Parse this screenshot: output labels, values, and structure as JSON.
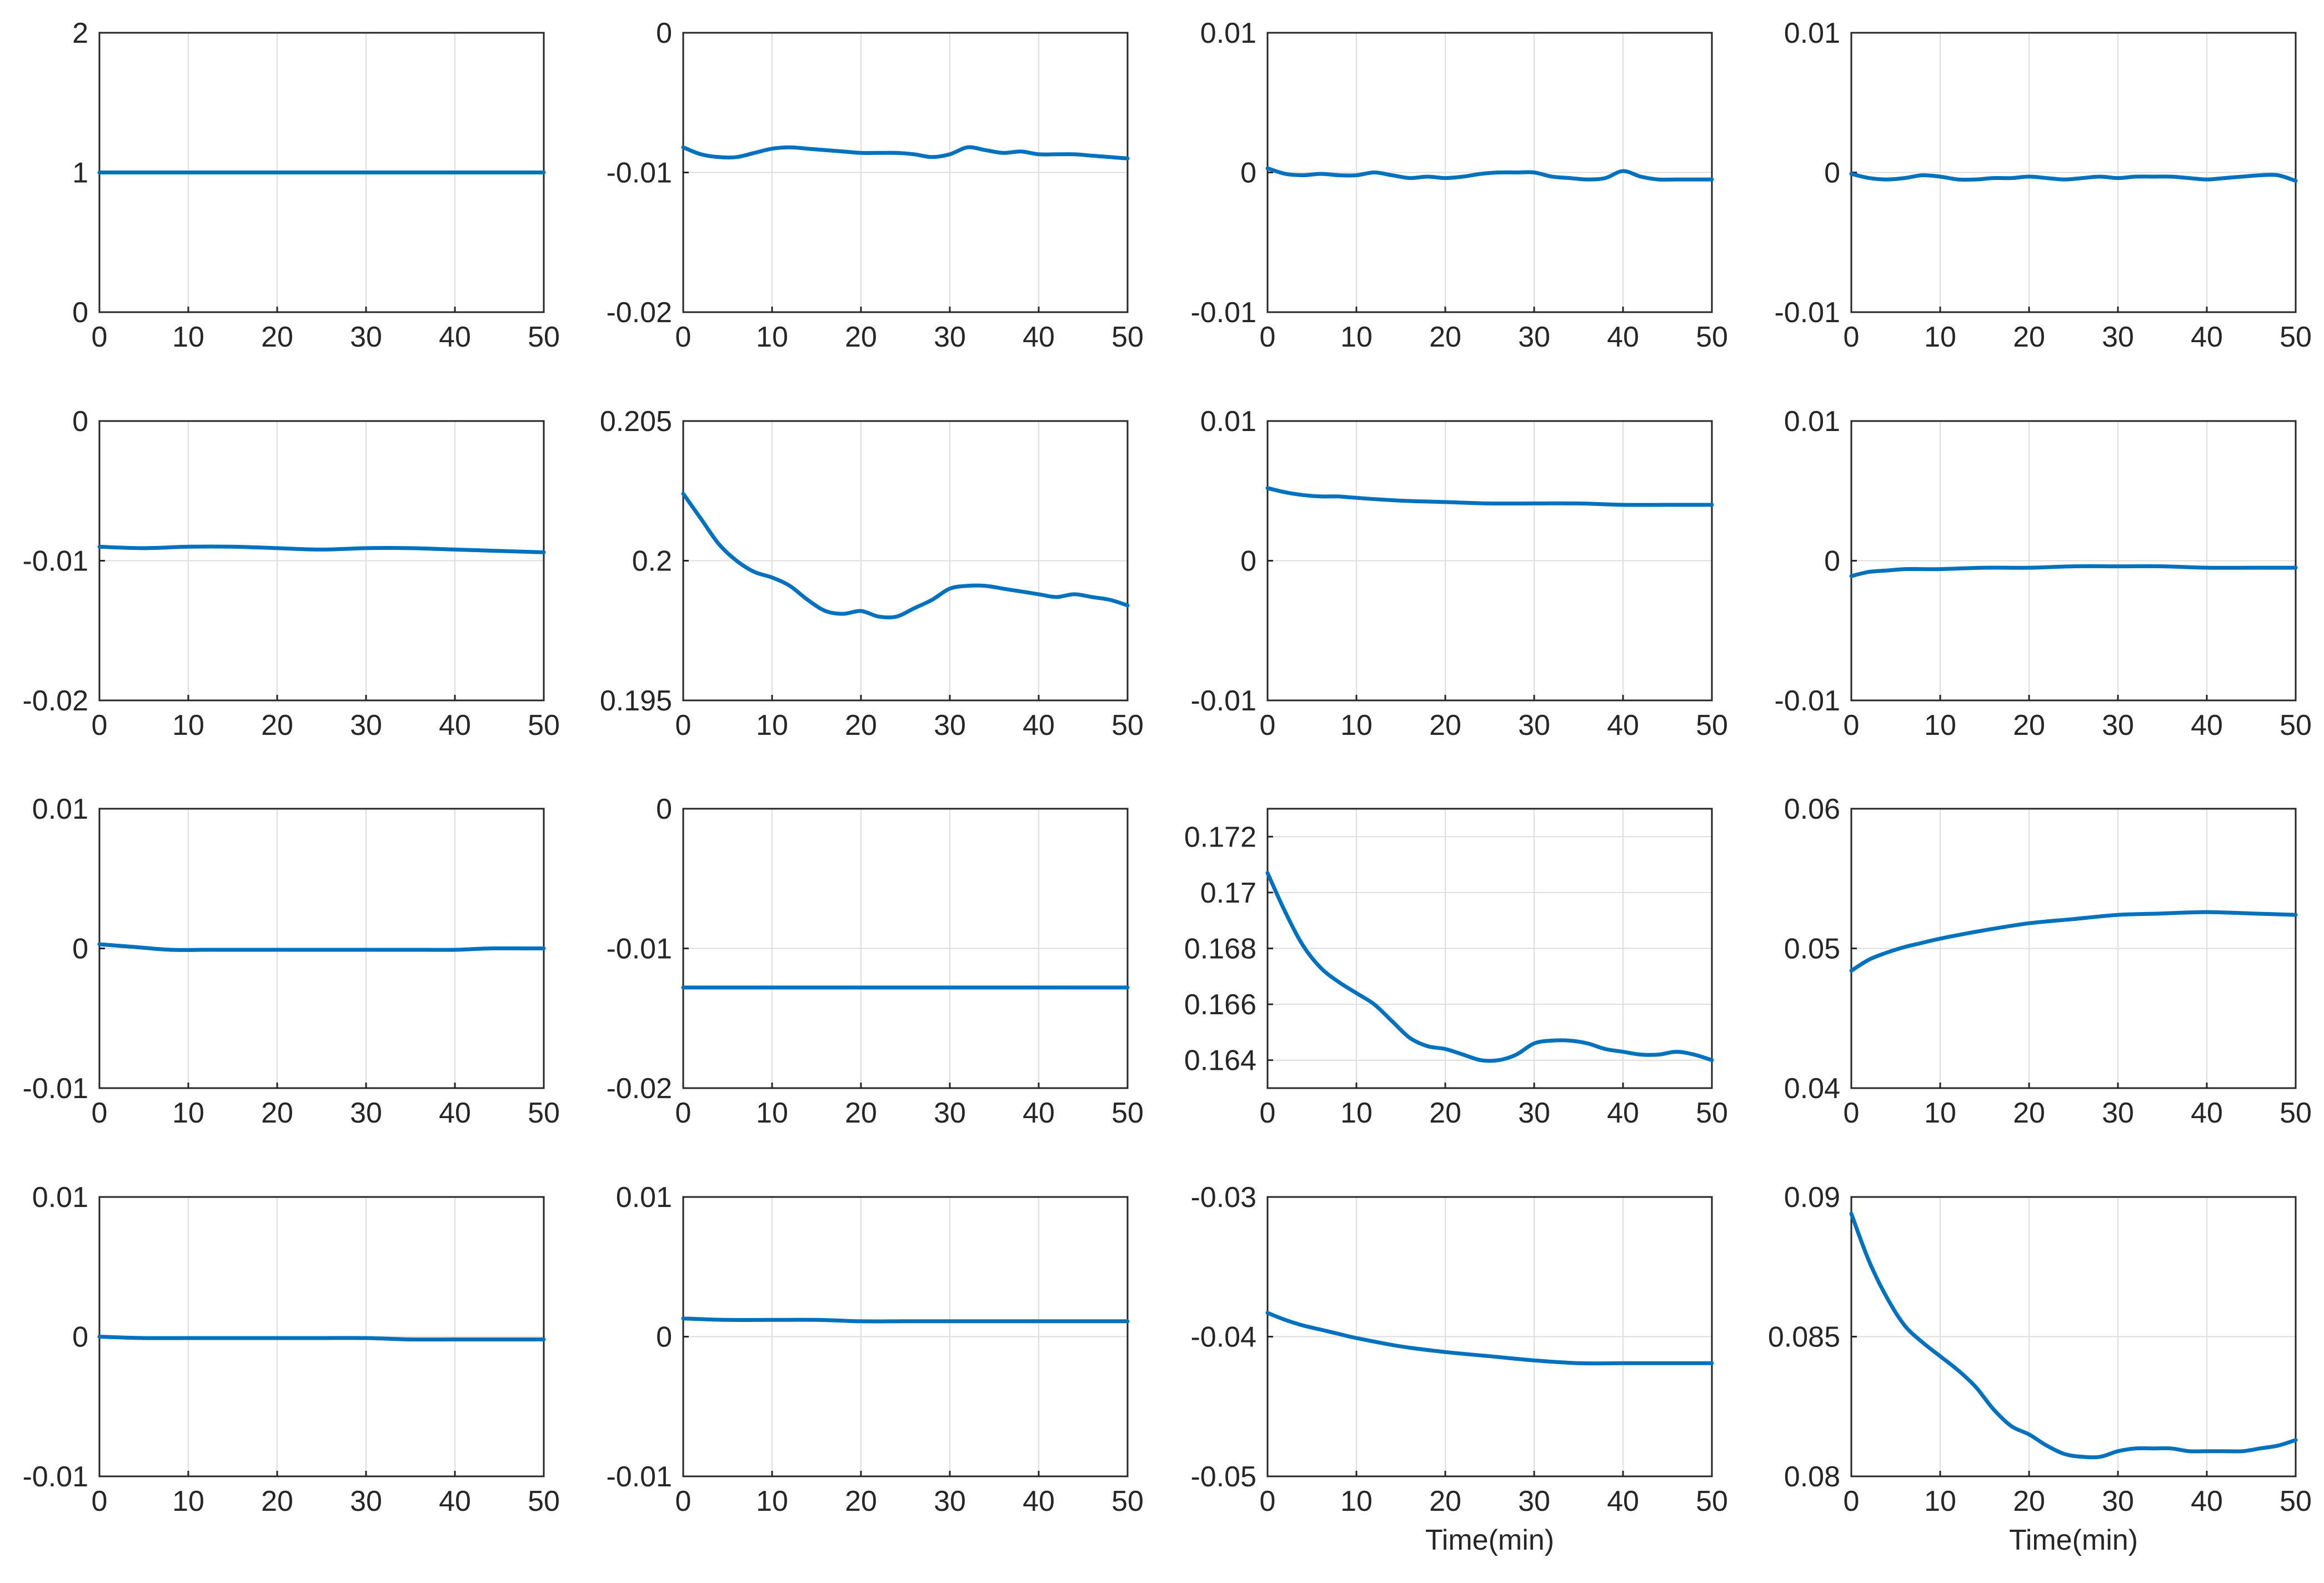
{
  "figure": {
    "grid": true,
    "line_color": "#0072BD",
    "frame_color": "#262626",
    "grid_color": "#dedede",
    "layout": "4x4 grid of line subplots"
  },
  "chart_data": [
    {
      "type": "line",
      "title": "",
      "xlabel": "",
      "ylabel": "",
      "xlim": [
        0,
        50
      ],
      "ylim": [
        0,
        2
      ],
      "xticks": [
        0,
        10,
        20,
        30,
        40,
        50
      ],
      "yticks": [
        0,
        1,
        2
      ],
      "ytick_labels": [
        "0",
        "1",
        "2"
      ],
      "x": [
        0,
        10,
        20,
        30,
        40,
        50
      ],
      "series": [
        {
          "name": "",
          "values": [
            1,
            1,
            1,
            1,
            1,
            1
          ]
        }
      ]
    },
    {
      "type": "line",
      "title": "",
      "xlabel": "",
      "ylabel": "",
      "xlim": [
        0,
        50
      ],
      "ylim": [
        -0.02,
        0
      ],
      "xticks": [
        0,
        10,
        20,
        30,
        40,
        50
      ],
      "yticks": [
        -0.02,
        -0.01,
        0
      ],
      "ytick_labels": [
        "-0.02",
        "-0.01",
        "0"
      ],
      "x": [
        0,
        2,
        4,
        6,
        8,
        10,
        12,
        14,
        16,
        18,
        20,
        22,
        24,
        26,
        28,
        30,
        32,
        34,
        36,
        38,
        40,
        42,
        44,
        46,
        48,
        50
      ],
      "series": [
        {
          "name": "",
          "values": [
            -0.0082,
            -0.0087,
            -0.0089,
            -0.0089,
            -0.0086,
            -0.0083,
            -0.0082,
            -0.0083,
            -0.0084,
            -0.0085,
            -0.0086,
            -0.0086,
            -0.0086,
            -0.0087,
            -0.0089,
            -0.0087,
            -0.0082,
            -0.0084,
            -0.0086,
            -0.0085,
            -0.0087,
            -0.0087,
            -0.0087,
            -0.0088,
            -0.0089,
            -0.009
          ]
        }
      ]
    },
    {
      "type": "line",
      "title": "",
      "xlabel": "",
      "ylabel": "",
      "xlim": [
        0,
        50
      ],
      "ylim": [
        -0.01,
        0.01
      ],
      "xticks": [
        0,
        10,
        20,
        30,
        40,
        50
      ],
      "yticks": [
        -0.01,
        0,
        0.01
      ],
      "ytick_labels": [
        "-0.01",
        "0",
        "0.01"
      ],
      "x": [
        0,
        2,
        4,
        6,
        8,
        10,
        12,
        14,
        16,
        18,
        20,
        22,
        24,
        26,
        28,
        30,
        32,
        34,
        36,
        38,
        40,
        42,
        44,
        46,
        48,
        50
      ],
      "series": [
        {
          "name": "",
          "values": [
            0.0003,
            -0.0001,
            -0.0002,
            -0.0001,
            -0.0002,
            -0.0002,
            0.0,
            -0.0002,
            -0.0004,
            -0.0003,
            -0.0004,
            -0.0003,
            -0.0001,
            0.0,
            0.0,
            0.0,
            -0.0003,
            -0.0004,
            -0.0005,
            -0.0004,
            0.0001,
            -0.0003,
            -0.0005,
            -0.0005,
            -0.0005,
            -0.0005
          ]
        }
      ]
    },
    {
      "type": "line",
      "title": "",
      "xlabel": "",
      "ylabel": "",
      "xlim": [
        0,
        50
      ],
      "ylim": [
        -0.01,
        0.01
      ],
      "xticks": [
        0,
        10,
        20,
        30,
        40,
        50
      ],
      "yticks": [
        -0.01,
        0,
        0.01
      ],
      "ytick_labels": [
        "-0.01",
        "0",
        "0.01"
      ],
      "x": [
        0,
        2,
        4,
        6,
        8,
        10,
        12,
        14,
        16,
        18,
        20,
        22,
        24,
        26,
        28,
        30,
        32,
        34,
        36,
        38,
        40,
        42,
        44,
        46,
        48,
        50
      ],
      "series": [
        {
          "name": "",
          "values": [
            -0.0001,
            -0.0004,
            -0.0005,
            -0.0004,
            -0.0002,
            -0.0003,
            -0.0005,
            -0.0005,
            -0.0004,
            -0.0004,
            -0.0003,
            -0.0004,
            -0.0005,
            -0.0004,
            -0.0003,
            -0.0004,
            -0.0003,
            -0.0003,
            -0.0003,
            -0.0004,
            -0.0005,
            -0.0004,
            -0.0003,
            -0.0002,
            -0.0002,
            -0.0006
          ]
        }
      ]
    },
    {
      "type": "line",
      "title": "",
      "xlabel": "",
      "ylabel": "",
      "xlim": [
        0,
        50
      ],
      "ylim": [
        -0.02,
        0
      ],
      "xticks": [
        0,
        10,
        20,
        30,
        40,
        50
      ],
      "yticks": [
        -0.02,
        -0.01,
        0
      ],
      "ytick_labels": [
        "-0.02",
        "-0.01",
        "0"
      ],
      "x": [
        0,
        5,
        10,
        15,
        20,
        25,
        30,
        35,
        40,
        45,
        50
      ],
      "series": [
        {
          "name": "",
          "values": [
            -0.009,
            -0.0091,
            -0.009,
            -0.009,
            -0.0091,
            -0.0092,
            -0.0091,
            -0.0091,
            -0.0092,
            -0.0093,
            -0.0094
          ]
        }
      ]
    },
    {
      "type": "line",
      "title": "",
      "xlabel": "",
      "ylabel": "",
      "xlim": [
        0,
        50
      ],
      "ylim": [
        0.195,
        0.205
      ],
      "xticks": [
        0,
        10,
        20,
        30,
        40,
        50
      ],
      "yticks": [
        0.195,
        0.2,
        0.205
      ],
      "ytick_labels": [
        "0.195",
        "0.2",
        "0.205"
      ],
      "x": [
        0,
        2,
        4,
        6,
        8,
        10,
        12,
        14,
        16,
        18,
        20,
        22,
        24,
        26,
        28,
        30,
        32,
        34,
        36,
        38,
        40,
        42,
        44,
        46,
        48,
        50
      ],
      "series": [
        {
          "name": "",
          "values": [
            0.2024,
            0.2015,
            0.2006,
            0.2,
            0.1996,
            0.1994,
            0.1991,
            0.1986,
            0.1982,
            0.1981,
            0.1982,
            0.198,
            0.198,
            0.1983,
            0.1986,
            0.199,
            0.1991,
            0.1991,
            0.199,
            0.1989,
            0.1988,
            0.1987,
            0.1988,
            0.1987,
            0.1986,
            0.1984
          ]
        }
      ]
    },
    {
      "type": "line",
      "title": "",
      "xlabel": "",
      "ylabel": "",
      "xlim": [
        0,
        50
      ],
      "ylim": [
        -0.01,
        0.01
      ],
      "xticks": [
        0,
        10,
        20,
        30,
        40,
        50
      ],
      "yticks": [
        -0.01,
        0,
        0.01
      ],
      "ytick_labels": [
        "-0.01",
        "0",
        "0.01"
      ],
      "x": [
        0,
        2,
        4,
        6,
        8,
        10,
        15,
        20,
        25,
        30,
        35,
        40,
        45,
        50
      ],
      "series": [
        {
          "name": "",
          "values": [
            0.0052,
            0.0049,
            0.0047,
            0.0046,
            0.0046,
            0.0045,
            0.0043,
            0.0042,
            0.0041,
            0.0041,
            0.0041,
            0.004,
            0.004,
            0.004
          ]
        }
      ]
    },
    {
      "type": "line",
      "title": "",
      "xlabel": "",
      "ylabel": "",
      "xlim": [
        0,
        50
      ],
      "ylim": [
        -0.01,
        0.01
      ],
      "xticks": [
        0,
        10,
        20,
        30,
        40,
        50
      ],
      "yticks": [
        -0.01,
        0,
        0.01
      ],
      "ytick_labels": [
        "-0.01",
        "0",
        "0.01"
      ],
      "x": [
        0,
        2,
        4,
        6,
        8,
        10,
        15,
        20,
        25,
        30,
        35,
        40,
        45,
        50
      ],
      "series": [
        {
          "name": "",
          "values": [
            -0.0011,
            -0.0008,
            -0.0007,
            -0.0006,
            -0.0006,
            -0.0006,
            -0.0005,
            -0.0005,
            -0.0004,
            -0.0004,
            -0.0004,
            -0.0005,
            -0.0005,
            -0.0005
          ]
        }
      ]
    },
    {
      "type": "line",
      "title": "",
      "xlabel": "",
      "ylabel": "",
      "xlim": [
        0,
        50
      ],
      "ylim": [
        -0.01,
        0.01
      ],
      "xticks": [
        0,
        10,
        20,
        30,
        40,
        50
      ],
      "yticks": [
        -0.01,
        0,
        0.01
      ],
      "ytick_labels": [
        "-0.01",
        "0",
        "0.01"
      ],
      "x": [
        0,
        4,
        8,
        12,
        16,
        20,
        24,
        28,
        32,
        36,
        40,
        44,
        48,
        50
      ],
      "series": [
        {
          "name": "",
          "values": [
            0.0003,
            0.0001,
            -0.0001,
            -0.0001,
            -0.0001,
            -0.0001,
            -0.0001,
            -0.0001,
            -0.0001,
            -0.0001,
            -0.0001,
            0.0,
            0.0,
            0.0
          ]
        }
      ]
    },
    {
      "type": "line",
      "title": "",
      "xlabel": "",
      "ylabel": "",
      "xlim": [
        0,
        50
      ],
      "ylim": [
        -0.02,
        0
      ],
      "xticks": [
        0,
        10,
        20,
        30,
        40,
        50
      ],
      "yticks": [
        -0.02,
        -0.01,
        0
      ],
      "ytick_labels": [
        "-0.02",
        "-0.01",
        "0"
      ],
      "x": [
        0,
        5,
        10,
        15,
        20,
        25,
        30,
        35,
        40,
        45,
        50
      ],
      "series": [
        {
          "name": "",
          "values": [
            -0.0128,
            -0.0128,
            -0.0128,
            -0.0128,
            -0.0128,
            -0.0128,
            -0.0128,
            -0.0128,
            -0.0128,
            -0.0128,
            -0.0128
          ]
        }
      ]
    },
    {
      "type": "line",
      "title": "",
      "xlabel": "",
      "ylabel": "",
      "xlim": [
        0,
        50
      ],
      "ylim": [
        0.163,
        0.173
      ],
      "xticks": [
        0,
        10,
        20,
        30,
        40,
        50
      ],
      "yticks": [
        0.164,
        0.166,
        0.168,
        0.17,
        0.172
      ],
      "ytick_labels": [
        "0.164",
        "0.166",
        "0.168",
        "0.17",
        "0.172"
      ],
      "x": [
        0,
        2,
        4,
        6,
        8,
        10,
        12,
        14,
        16,
        18,
        20,
        22,
        24,
        26,
        28,
        30,
        32,
        34,
        36,
        38,
        40,
        42,
        44,
        46,
        48,
        50
      ],
      "series": [
        {
          "name": "",
          "values": [
            0.1707,
            0.1693,
            0.1681,
            0.1673,
            0.1668,
            0.1664,
            0.166,
            0.1654,
            0.1648,
            0.1645,
            0.1644,
            0.1642,
            0.164,
            0.164,
            0.1642,
            0.1646,
            0.1647,
            0.1647,
            0.1646,
            0.1644,
            0.1643,
            0.1642,
            0.1642,
            0.1643,
            0.1642,
            0.164
          ]
        }
      ]
    },
    {
      "type": "line",
      "title": "",
      "xlabel": "",
      "ylabel": "",
      "xlim": [
        0,
        50
      ],
      "ylim": [
        0.04,
        0.06
      ],
      "xticks": [
        0,
        10,
        20,
        30,
        40,
        50
      ],
      "yticks": [
        0.04,
        0.05,
        0.06
      ],
      "ytick_labels": [
        "0.04",
        "0.05",
        "0.06"
      ],
      "x": [
        0,
        2,
        4,
        6,
        8,
        10,
        15,
        20,
        25,
        30,
        35,
        40,
        45,
        50
      ],
      "series": [
        {
          "name": "",
          "values": [
            0.0484,
            0.0492,
            0.0497,
            0.0501,
            0.0504,
            0.0507,
            0.0513,
            0.0518,
            0.0521,
            0.0524,
            0.0525,
            0.0526,
            0.0525,
            0.0524
          ]
        }
      ]
    },
    {
      "type": "line",
      "title": "",
      "xlabel": "",
      "ylabel": "",
      "xlim": [
        0,
        50
      ],
      "ylim": [
        -0.01,
        0.01
      ],
      "xticks": [
        0,
        10,
        20,
        30,
        40,
        50
      ],
      "yticks": [
        -0.01,
        0,
        0.01
      ],
      "ytick_labels": [
        "-0.01",
        "0",
        "0.01"
      ],
      "x": [
        0,
        5,
        10,
        15,
        20,
        25,
        30,
        35,
        40,
        45,
        50
      ],
      "series": [
        {
          "name": "",
          "values": [
            0.0,
            -0.0001,
            -0.0001,
            -0.0001,
            -0.0001,
            -0.0001,
            -0.0001,
            -0.0002,
            -0.0002,
            -0.0002,
            -0.0002
          ]
        }
      ]
    },
    {
      "type": "line",
      "title": "",
      "xlabel": "",
      "ylabel": "",
      "xlim": [
        0,
        50
      ],
      "ylim": [
        -0.01,
        0.01
      ],
      "xticks": [
        0,
        10,
        20,
        30,
        40,
        50
      ],
      "yticks": [
        -0.01,
        0,
        0.01
      ],
      "ytick_labels": [
        "-0.01",
        "0",
        "0.01"
      ],
      "x": [
        0,
        5,
        10,
        15,
        20,
        25,
        30,
        35,
        40,
        45,
        50
      ],
      "series": [
        {
          "name": "",
          "values": [
            0.0013,
            0.0012,
            0.0012,
            0.0012,
            0.0011,
            0.0011,
            0.0011,
            0.0011,
            0.0011,
            0.0011,
            0.0011
          ]
        }
      ]
    },
    {
      "type": "line",
      "title": "",
      "xlabel": "Time(min)",
      "ylabel": "",
      "xlim": [
        0,
        50
      ],
      "ylim": [
        -0.05,
        -0.03
      ],
      "xticks": [
        0,
        10,
        20,
        30,
        40,
        50
      ],
      "yticks": [
        -0.05,
        -0.04,
        -0.03
      ],
      "ytick_labels": [
        "-0.05",
        "-0.04",
        "-0.03"
      ],
      "x": [
        0,
        2,
        4,
        6,
        8,
        10,
        15,
        20,
        25,
        30,
        35,
        40,
        45,
        50
      ],
      "series": [
        {
          "name": "",
          "values": [
            -0.0383,
            -0.0388,
            -0.0392,
            -0.0395,
            -0.0398,
            -0.0401,
            -0.0407,
            -0.0411,
            -0.0414,
            -0.0417,
            -0.0419,
            -0.0419,
            -0.0419,
            -0.0419
          ]
        }
      ]
    },
    {
      "type": "line",
      "title": "",
      "xlabel": "Time(min)",
      "ylabel": "",
      "xlim": [
        0,
        50
      ],
      "ylim": [
        0.08,
        0.09
      ],
      "xticks": [
        0,
        10,
        20,
        30,
        40,
        50
      ],
      "yticks": [
        0.08,
        0.085,
        0.09
      ],
      "ytick_labels": [
        "0.08",
        "0.085",
        "0.09"
      ],
      "x": [
        0,
        2,
        4,
        6,
        8,
        10,
        12,
        14,
        16,
        18,
        20,
        22,
        24,
        26,
        28,
        30,
        32,
        34,
        36,
        38,
        40,
        42,
        44,
        46,
        48,
        50
      ],
      "series": [
        {
          "name": "",
          "values": [
            0.0894,
            0.0877,
            0.0864,
            0.0854,
            0.0848,
            0.0843,
            0.0838,
            0.0832,
            0.0824,
            0.0818,
            0.0815,
            0.0811,
            0.0808,
            0.0807,
            0.0807,
            0.0809,
            0.081,
            0.081,
            0.081,
            0.0809,
            0.0809,
            0.0809,
            0.0809,
            0.081,
            0.0811,
            0.0813
          ]
        }
      ]
    }
  ]
}
